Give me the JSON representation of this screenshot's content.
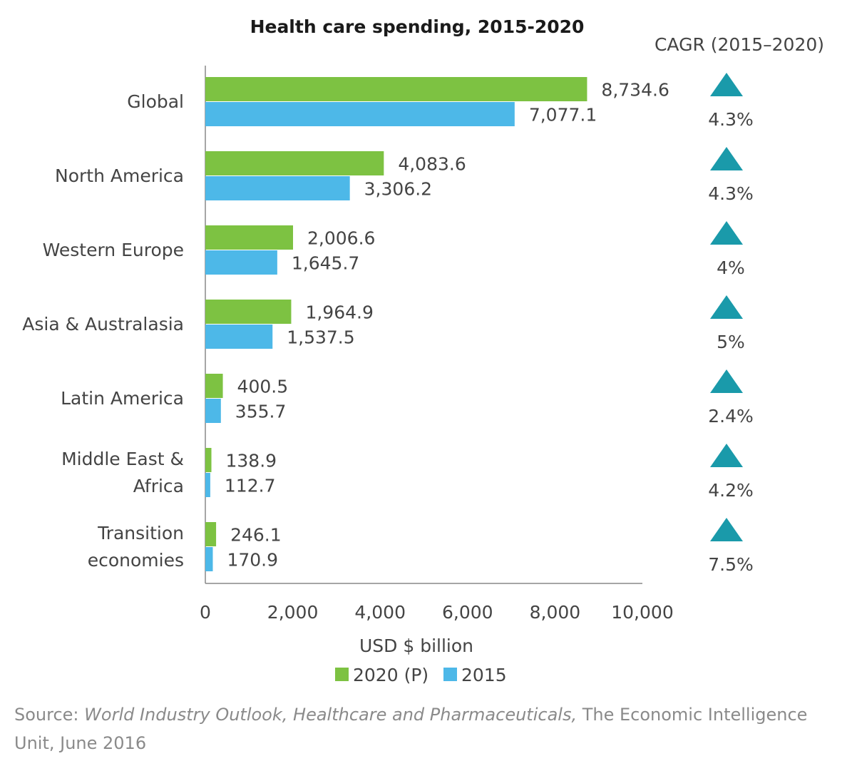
{
  "chart_data": {
    "type": "bar",
    "orientation": "horizontal",
    "title": "Health care spending, 2015-2020",
    "categories": [
      [
        "Global"
      ],
      [
        "North America"
      ],
      [
        "Western Europe"
      ],
      [
        "Asia & Australasia"
      ],
      [
        "Latin America"
      ],
      [
        "Middle East &",
        "Africa"
      ],
      [
        "Transition",
        "economies"
      ]
    ],
    "series": [
      {
        "name": "2020 (P)",
        "color": "#7dc242",
        "values": [
          8734.6,
          4083.6,
          2006.6,
          1964.9,
          400.5,
          138.9,
          246.1
        ],
        "labels": [
          "8,734.6",
          "4,083.6",
          "2,006.6",
          "1,964.9",
          "400.5",
          "138.9",
          "246.1"
        ]
      },
      {
        "name": "2015",
        "color": "#4db8e8",
        "values": [
          7077.1,
          3306.2,
          1645.7,
          1537.5,
          355.7,
          112.7,
          170.9
        ],
        "labels": [
          "7,077.1",
          "3,306.2",
          "1,645.7",
          "1,537.5",
          "355.7",
          "112.7",
          "170.9"
        ]
      }
    ],
    "xlim": [
      0,
      10000
    ],
    "xticks": [
      0,
      2000,
      4000,
      6000,
      8000,
      10000
    ],
    "xtick_labels": [
      "0",
      "2,000",
      "4,000",
      "6,000",
      "8,000",
      "10,000"
    ],
    "xlabel": "USD $ billion",
    "legend": [
      "2020 (P)",
      "2015"
    ],
    "legend_position": "bottom",
    "cagr": {
      "title": "CAGR (2015–2020)",
      "marker_color": "#1a9aaa",
      "values": [
        "4.3%",
        "4.3%",
        "4%",
        "5%",
        "2.4%",
        "4.2%",
        "7.5%"
      ]
    }
  },
  "source": {
    "prefix": "Source: ",
    "italic": "World Industry Outlook, Healthcare and Pharmaceuticals,",
    "suffix": " The Economic Intelligence Unit, June 2016"
  }
}
